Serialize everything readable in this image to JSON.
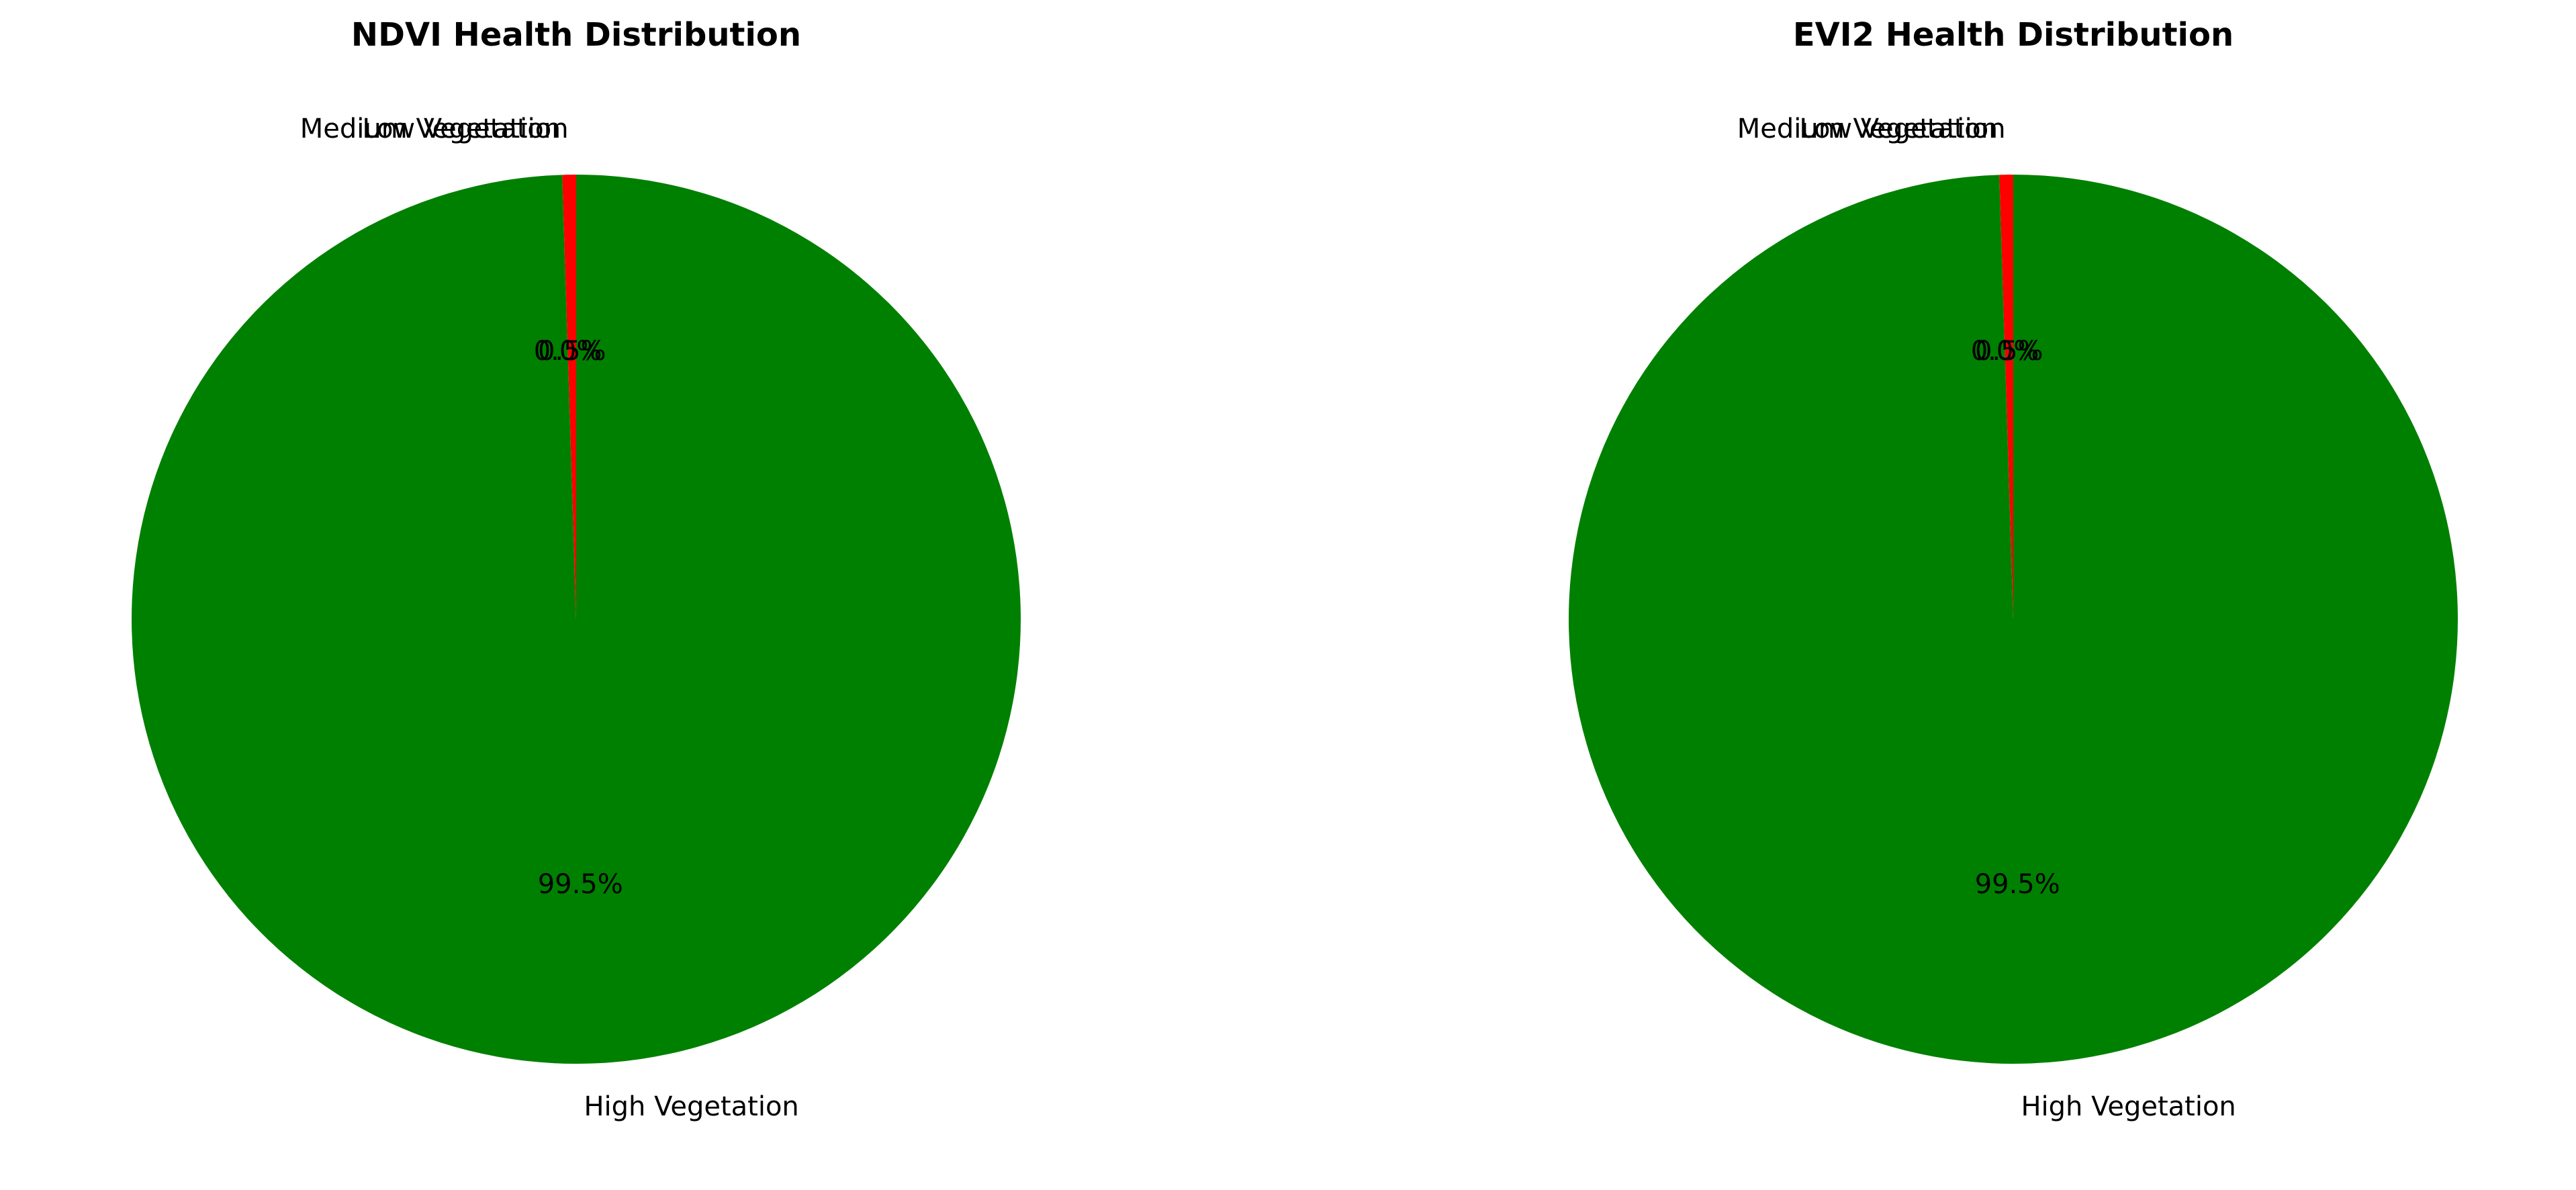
{
  "chart_data": [
    {
      "type": "pie",
      "title": "NDVI Health Distribution",
      "start_angle_deg": 90,
      "direction": "counterclockwise",
      "slices": [
        {
          "label": "Low Vegetation",
          "value": 0.5,
          "pct_label": "0.5%",
          "color": "#ff0000"
        },
        {
          "label": "Medium Vegetation",
          "value": 0.0,
          "pct_label": "0.0%",
          "color": "#ffa500"
        },
        {
          "label": "High Vegetation",
          "value": 99.5,
          "pct_label": "99.5%",
          "color": "#008000"
        }
      ]
    },
    {
      "type": "pie",
      "title": "EVI2 Health Distribution",
      "start_angle_deg": 90,
      "direction": "counterclockwise",
      "slices": [
        {
          "label": "Low Vegetation",
          "value": 0.5,
          "pct_label": "0.5%",
          "color": "#ff0000"
        },
        {
          "label": "Medium Vegetation",
          "value": 0.0,
          "pct_label": "0.0%",
          "color": "#ffa500"
        },
        {
          "label": "High Vegetation",
          "value": 99.5,
          "pct_label": "99.5%",
          "color": "#008000"
        }
      ]
    }
  ]
}
